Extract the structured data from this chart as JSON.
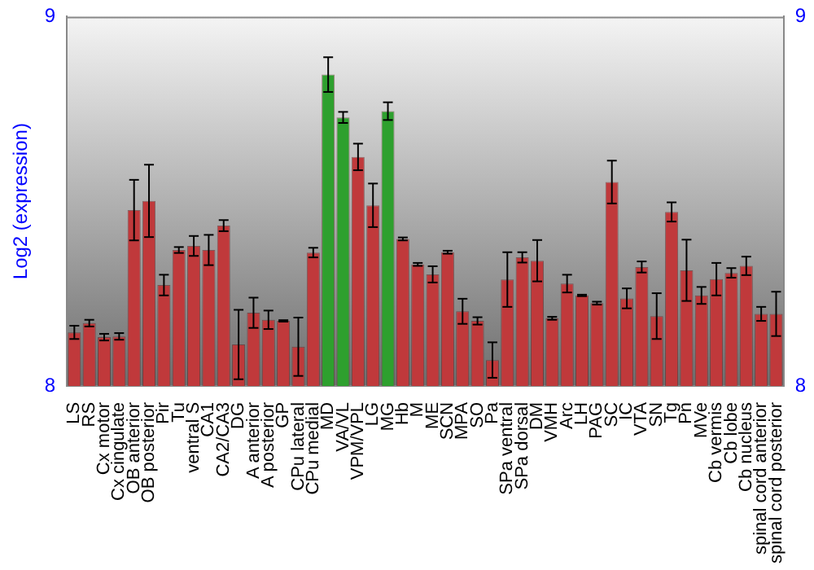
{
  "chart_data": {
    "type": "bar",
    "ylabel": "Log2 (expression)",
    "categories": [
      "LS",
      "RS",
      "Cx motor",
      "Cx cingulate",
      "OB anterior",
      "OB posterior",
      "Pir",
      "Tu",
      "ventral S",
      "CA1",
      "CA2/CA3",
      "DG",
      "A anterior",
      "A posterior",
      "GP",
      "CPu lateral",
      "CPu medial",
      "MD",
      "VA/VL",
      "VPM/VPL",
      "LG",
      "MG",
      "Hb",
      "M",
      "ME",
      "SCN",
      "MPA",
      "SO",
      "Pa",
      "SPa ventral",
      "SPa dorsal",
      "DM",
      "VMH",
      "Arc",
      "LH",
      "PAG",
      "SC",
      "IC",
      "VTA",
      "SN",
      "Tg",
      "Pn",
      "MVe",
      "Cb vermis",
      "Cb lobe",
      "Cb nucleus",
      "spinal cord anterior",
      "spinal cord posterior"
    ],
    "values": [
      8.145,
      8.17,
      8.132,
      8.134,
      8.476,
      8.501,
      8.273,
      8.368,
      8.379,
      8.368,
      8.434,
      8.112,
      8.198,
      8.179,
      8.176,
      8.106,
      8.361,
      8.843,
      8.727,
      8.62,
      8.489,
      8.744,
      8.398,
      8.329,
      8.302,
      8.362,
      8.202,
      8.176,
      8.07,
      8.288,
      8.348,
      8.339,
      8.183,
      8.277,
      8.245,
      8.224,
      8.552,
      8.237,
      8.322,
      8.189,
      8.471,
      8.313,
      8.245,
      8.289,
      8.306,
      8.325,
      8.195,
      8.195
    ],
    "errors": [
      0.018,
      0.009,
      0.009,
      0.009,
      0.082,
      0.098,
      0.028,
      0.008,
      0.027,
      0.041,
      0.015,
      0.094,
      0.041,
      0.025,
      0.002,
      0.079,
      0.013,
      0.047,
      0.015,
      0.036,
      0.059,
      0.024,
      0.004,
      0.004,
      0.022,
      0.004,
      0.034,
      0.01,
      0.048,
      0.074,
      0.014,
      0.056,
      0.004,
      0.024,
      0.002,
      0.004,
      0.058,
      0.027,
      0.015,
      0.062,
      0.026,
      0.083,
      0.023,
      0.044,
      0.013,
      0.025,
      0.019,
      0.06
    ],
    "colors": [
      "#c0393b",
      "#c0393b",
      "#c0393b",
      "#c0393b",
      "#c0393b",
      "#c0393b",
      "#c0393b",
      "#c0393b",
      "#c0393b",
      "#c0393b",
      "#c0393b",
      "#c0393b",
      "#c0393b",
      "#c0393b",
      "#c0393b",
      "#c0393b",
      "#c0393b",
      "#2ea02e",
      "#2ea02e",
      "#c0393b",
      "#c0393b",
      "#2ea02e",
      "#c0393b",
      "#c0393b",
      "#c0393b",
      "#c0393b",
      "#c0393b",
      "#c0393b",
      "#c0393b",
      "#c0393b",
      "#c0393b",
      "#c0393b",
      "#c0393b",
      "#c0393b",
      "#c0393b",
      "#c0393b",
      "#c0393b",
      "#c0393b",
      "#c0393b",
      "#c0393b",
      "#c0393b",
      "#c0393b",
      "#c0393b",
      "#c0393b",
      "#c0393b",
      "#c0393b",
      "#c0393b",
      "#c0393b"
    ],
    "ylim": [
      8,
      9
    ],
    "yticks": [
      8,
      9
    ],
    "y2lim": [
      8,
      9
    ],
    "y2ticks": [
      8,
      9
    ],
    "grid": false,
    "legend": false
  }
}
